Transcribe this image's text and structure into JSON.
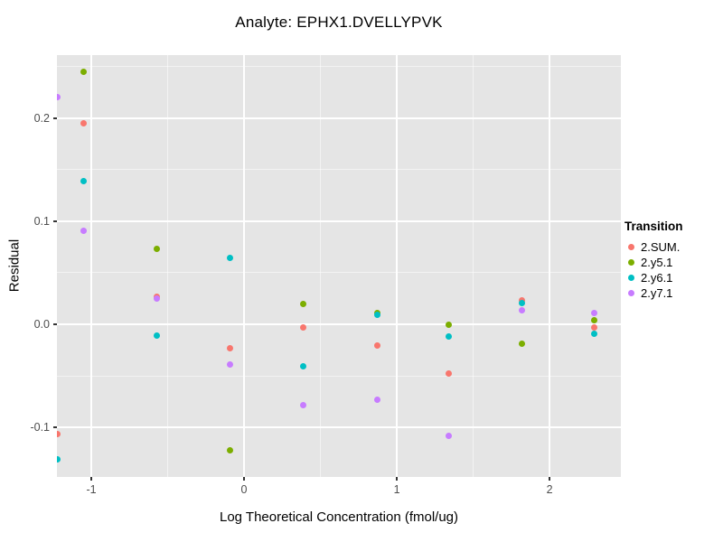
{
  "chart_data": {
    "type": "scatter",
    "title": "Analyte: EPHX1.DVELLYPVK",
    "xlabel": "Log Theoretical Concentration (fmol/ug)",
    "ylabel": "Residual",
    "legend_title": "Transition",
    "legend_position": "right",
    "grid": true,
    "panel_background": "#E5E5E5",
    "xlim": [
      -1.225,
      2.467
    ],
    "ylim": [
      -0.148,
      0.261
    ],
    "x_ticks": {
      "values": [
        -1,
        0,
        1,
        2
      ],
      "labels": [
        "-1",
        "0",
        "1",
        "2"
      ]
    },
    "y_ticks": {
      "values": [
        0.2,
        0.1,
        0.0,
        -0.1
      ],
      "labels": [
        "0.2",
        "0.1",
        "0.0",
        "-0.1"
      ]
    },
    "x_minor_gridlines": [
      -0.5,
      0.5,
      1.5
    ],
    "y_minor_gridlines": [
      -0.05,
      0.05,
      0.15,
      0.25
    ],
    "series": [
      {
        "name": "2.SUM.",
        "color": "#F8766D",
        "points": [
          [
            -1.22,
            -0.106
          ],
          [
            -1.05,
            0.195
          ],
          [
            -0.57,
            0.027
          ],
          [
            -0.09,
            -0.023
          ],
          [
            0.39,
            -0.003
          ],
          [
            0.87,
            -0.021
          ],
          [
            1.34,
            -0.048
          ],
          [
            1.82,
            0.023
          ],
          [
            2.29,
            -0.003
          ]
        ]
      },
      {
        "name": "2.y5.1",
        "color": "#7CAE00",
        "points": [
          [
            -1.05,
            0.245
          ],
          [
            -0.57,
            0.073
          ],
          [
            -0.09,
            -0.122
          ],
          [
            0.39,
            0.02
          ],
          [
            0.87,
            0.011
          ],
          [
            1.34,
            0.0
          ],
          [
            1.82,
            -0.019
          ],
          [
            2.29,
            0.004
          ]
        ]
      },
      {
        "name": "2.y6.1",
        "color": "#00BFC4",
        "points": [
          [
            -1.22,
            -0.131
          ],
          [
            -1.05,
            0.139
          ],
          [
            -0.57,
            -0.011
          ],
          [
            -0.09,
            0.064
          ],
          [
            0.39,
            -0.041
          ],
          [
            0.87,
            0.009
          ],
          [
            1.34,
            -0.012
          ],
          [
            1.82,
            0.021
          ],
          [
            2.29,
            -0.009
          ]
        ]
      },
      {
        "name": "2.y7.1",
        "color": "#C77CFF",
        "points": [
          [
            -1.22,
            0.22
          ],
          [
            -1.05,
            0.091
          ],
          [
            -0.57,
            0.025
          ],
          [
            -0.09,
            -0.039
          ],
          [
            0.39,
            -0.078
          ],
          [
            0.87,
            -0.073
          ],
          [
            1.34,
            -0.108
          ],
          [
            1.82,
            0.014
          ],
          [
            2.29,
            0.011
          ]
        ]
      }
    ]
  }
}
